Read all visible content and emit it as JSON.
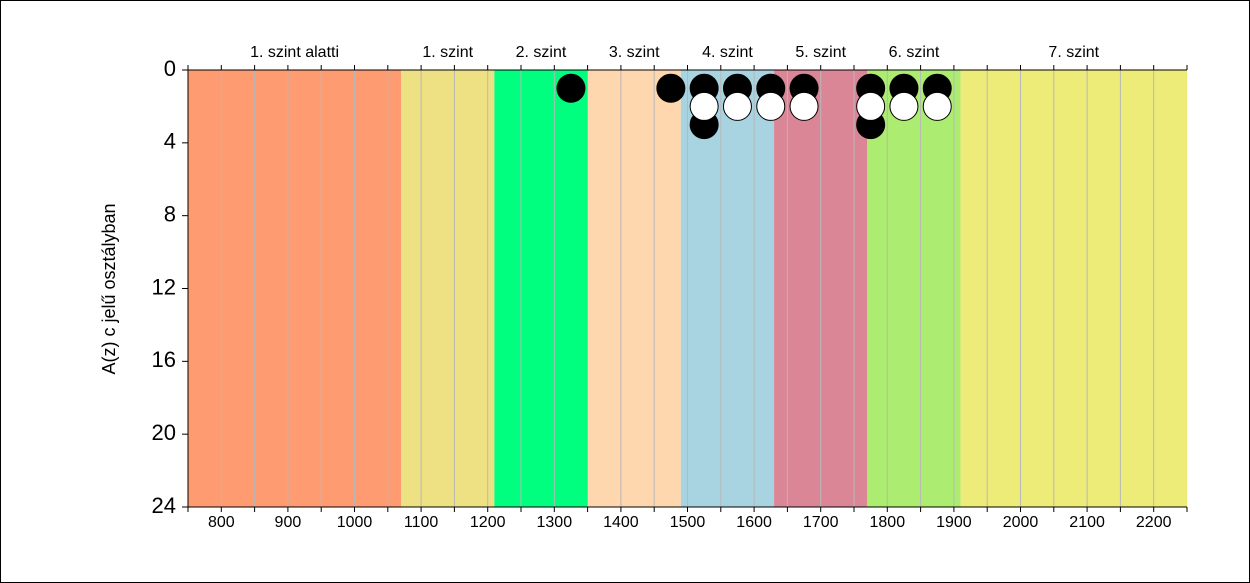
{
  "chart_data": {
    "type": "scatter",
    "ylabel": "A(z) c jelű osztályban",
    "xlim": [
      750,
      2250
    ],
    "ylim": [
      0,
      24
    ],
    "y_inverted": true,
    "x_ticks": [
      800,
      900,
      1000,
      1100,
      1200,
      1300,
      1400,
      1500,
      1600,
      1700,
      1800,
      1900,
      2000,
      2100,
      2200
    ],
    "y_ticks": [
      0,
      4,
      8,
      12,
      16,
      20,
      24
    ],
    "grid_x_step": 50,
    "levels": [
      {
        "label": "1. szint alatti",
        "from": 750,
        "to": 1070,
        "color": "#ff9b70"
      },
      {
        "label": "1. szint",
        "from": 1070,
        "to": 1210,
        "color": "#ede184"
      },
      {
        "label": "2. szint",
        "from": 1210,
        "to": 1350,
        "color": "#00ff7f"
      },
      {
        "label": "3. szint",
        "from": 1350,
        "to": 1490,
        "color": "#ffd7ae"
      },
      {
        "label": "4. szint",
        "from": 1490,
        "to": 1630,
        "color": "#a8d4e1"
      },
      {
        "label": "5. szint",
        "from": 1630,
        "to": 1770,
        "color": "#db8697"
      },
      {
        "label": "6. szint",
        "from": 1770,
        "to": 1910,
        "color": "#aced71"
      },
      {
        "label": "7. szint",
        "from": 1910,
        "to": 2250,
        "color": "#edec79"
      }
    ],
    "series": [
      {
        "marker": "filled",
        "color": "#000000",
        "points": [
          [
            1325,
            1
          ],
          [
            1475,
            1
          ],
          [
            1525,
            1
          ],
          [
            1575,
            1
          ],
          [
            1625,
            1
          ],
          [
            1675,
            1
          ],
          [
            1775,
            1
          ],
          [
            1825,
            1
          ],
          [
            1875,
            1
          ],
          [
            1525,
            3
          ],
          [
            1775,
            3
          ]
        ]
      },
      {
        "marker": "open",
        "color": "#ffffff",
        "points": [
          [
            1525,
            2
          ],
          [
            1575,
            2
          ],
          [
            1625,
            2
          ],
          [
            1675,
            2
          ],
          [
            1775,
            2
          ],
          [
            1825,
            2
          ],
          [
            1875,
            2
          ]
        ]
      }
    ]
  }
}
